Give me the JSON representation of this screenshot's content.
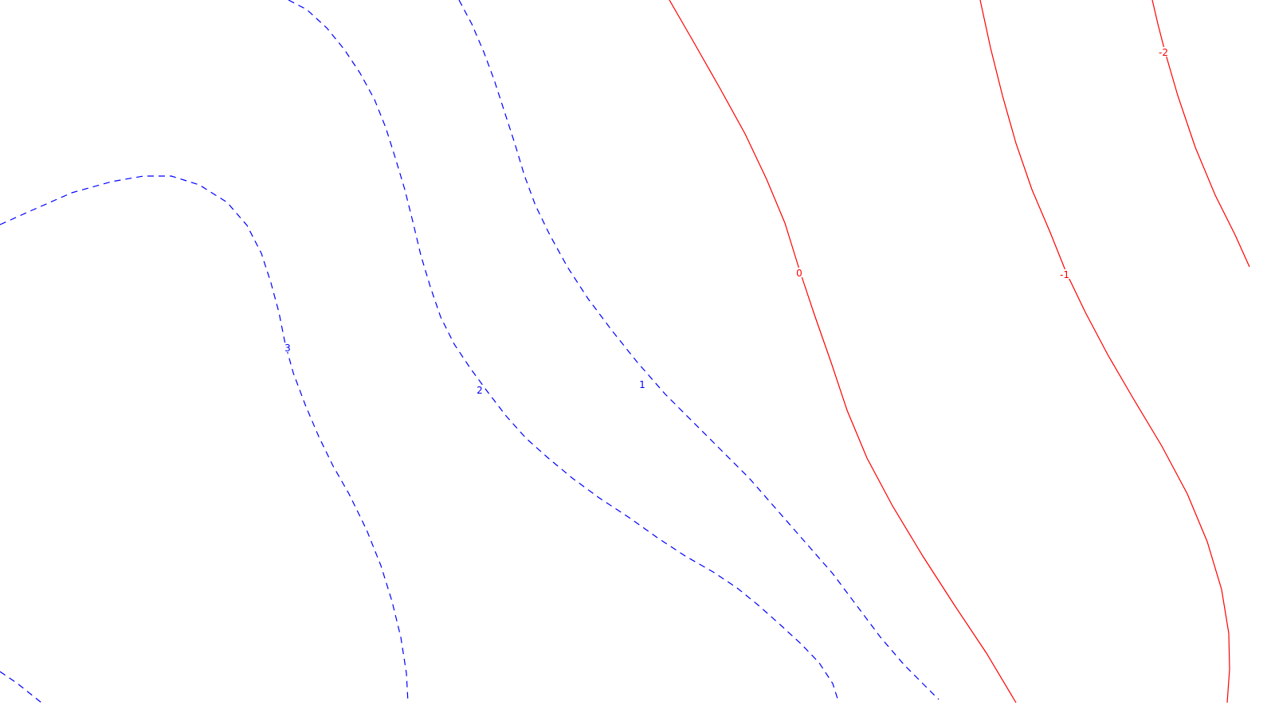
{
  "chart_data": {
    "type": "contour",
    "title": "",
    "xlabel": "",
    "ylabel": "",
    "grid": false,
    "legend": "none",
    "negative_color": "#ff0000",
    "positive_color": "#0000ff",
    "positive_linestyle": "dashed",
    "negative_linestyle": "solid",
    "levels": [
      {
        "value": 3,
        "label": "3"
      },
      {
        "value": 2,
        "label": "2"
      },
      {
        "value": 1,
        "label": "1"
      },
      {
        "value": 0,
        "label": "0"
      },
      {
        "value": -1,
        "label": "-1"
      },
      {
        "value": -2,
        "label": "-2"
      }
    ]
  }
}
